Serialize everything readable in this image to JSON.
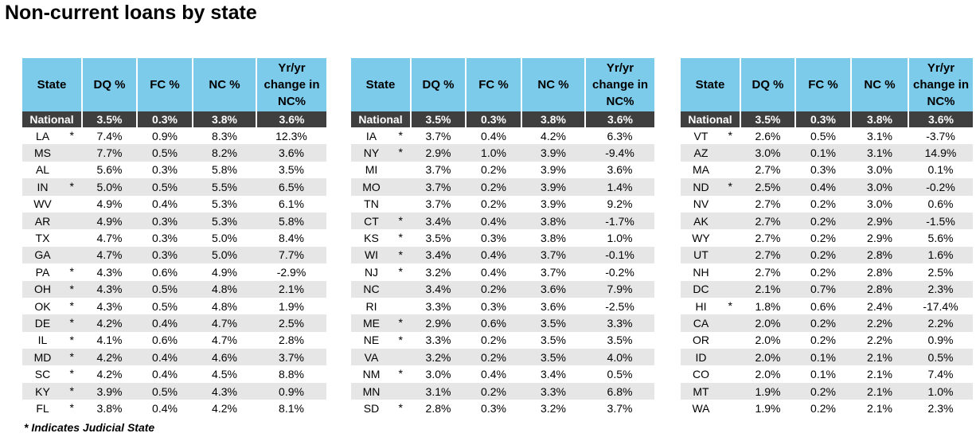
{
  "title": "Non-current loans by state",
  "tables": [
    {
      "headers": [
        "State",
        "DQ %",
        "FC %",
        "NC %",
        "Yr/yr change in NC%"
      ],
      "national": [
        "National",
        "3.5%",
        "0.3%",
        "3.8%",
        "3.6%"
      ],
      "rows": [
        {
          "state": "LA",
          "mark": "*",
          "cells": [
            "7.4%",
            "0.9%",
            "8.3%",
            "12.3%"
          ]
        },
        {
          "state": "MS",
          "cells": [
            "7.7%",
            "0.5%",
            "8.2%",
            "3.6%"
          ]
        },
        {
          "state": "AL",
          "cells": [
            "5.6%",
            "0.3%",
            "5.8%",
            "3.5%"
          ]
        },
        {
          "state": "IN",
          "mark": "*",
          "cells": [
            "5.0%",
            "0.5%",
            "5.5%",
            "6.5%"
          ]
        },
        {
          "state": "WV",
          "cells": [
            "4.9%",
            "0.4%",
            "5.3%",
            "6.1%"
          ]
        },
        {
          "state": "AR",
          "cells": [
            "4.9%",
            "0.3%",
            "5.3%",
            "5.8%"
          ]
        },
        {
          "state": "TX",
          "cells": [
            "4.7%",
            "0.3%",
            "5.0%",
            "8.4%"
          ]
        },
        {
          "state": "GA",
          "cells": [
            "4.7%",
            "0.3%",
            "5.0%",
            "7.7%"
          ]
        },
        {
          "state": "PA",
          "mark": "*",
          "cells": [
            "4.3%",
            "0.6%",
            "4.9%",
            "-2.9%"
          ]
        },
        {
          "state": "OH",
          "mark": "*",
          "cells": [
            "4.3%",
            "0.5%",
            "4.8%",
            "2.1%"
          ]
        },
        {
          "state": "OK",
          "mark": "*",
          "cells": [
            "4.3%",
            "0.5%",
            "4.8%",
            "1.9%"
          ]
        },
        {
          "state": "DE",
          "mark": "*",
          "cells": [
            "4.2%",
            "0.4%",
            "4.7%",
            "2.5%"
          ]
        },
        {
          "state": "IL",
          "mark": "*",
          "cells": [
            "4.1%",
            "0.6%",
            "4.7%",
            "2.8%"
          ]
        },
        {
          "state": "MD",
          "mark": "*",
          "cells": [
            "4.2%",
            "0.4%",
            "4.6%",
            "3.7%"
          ]
        },
        {
          "state": "SC",
          "mark": "*",
          "cells": [
            "4.2%",
            "0.4%",
            "4.5%",
            "8.8%"
          ]
        },
        {
          "state": "KY",
          "mark": "*",
          "cells": [
            "3.9%",
            "0.5%",
            "4.3%",
            "0.9%"
          ]
        },
        {
          "state": "FL",
          "mark": "*",
          "cells": [
            "3.8%",
            "0.4%",
            "4.2%",
            "8.1%"
          ]
        }
      ]
    },
    {
      "headers": [
        "State",
        "DQ %",
        "FC %",
        "NC %",
        "Yr/yr change in NC%"
      ],
      "national": [
        "National",
        "3.5%",
        "0.3%",
        "3.8%",
        "3.6%"
      ],
      "rows": [
        {
          "state": "IA",
          "mark": "*",
          "cells": [
            "3.7%",
            "0.4%",
            "4.2%",
            "6.3%"
          ]
        },
        {
          "state": "NY",
          "mark": "*",
          "cells": [
            "2.9%",
            "1.0%",
            "3.9%",
            "-9.4%"
          ]
        },
        {
          "state": "MI",
          "cells": [
            "3.7%",
            "0.2%",
            "3.9%",
            "3.6%"
          ]
        },
        {
          "state": "MO",
          "cells": [
            "3.7%",
            "0.2%",
            "3.9%",
            "1.4%"
          ]
        },
        {
          "state": "TN",
          "cells": [
            "3.7%",
            "0.2%",
            "3.9%",
            "9.2%"
          ]
        },
        {
          "state": "CT",
          "mark": "*",
          "cells": [
            "3.4%",
            "0.4%",
            "3.8%",
            "-1.7%"
          ]
        },
        {
          "state": "KS",
          "mark": "*",
          "cells": [
            "3.5%",
            "0.3%",
            "3.8%",
            "1.0%"
          ]
        },
        {
          "state": "WI",
          "mark": "*",
          "cells": [
            "3.4%",
            "0.4%",
            "3.7%",
            "-0.1%"
          ]
        },
        {
          "state": "NJ",
          "mark": "*",
          "cells": [
            "3.2%",
            "0.4%",
            "3.7%",
            "-0.2%"
          ]
        },
        {
          "state": "NC",
          "cells": [
            "3.4%",
            "0.2%",
            "3.6%",
            "7.9%"
          ]
        },
        {
          "state": "RI",
          "cells": [
            "3.3%",
            "0.3%",
            "3.6%",
            "-2.5%"
          ]
        },
        {
          "state": "ME",
          "mark": "*",
          "cells": [
            "2.9%",
            "0.6%",
            "3.5%",
            "3.3%"
          ]
        },
        {
          "state": "NE",
          "mark": "*",
          "cells": [
            "3.3%",
            "0.2%",
            "3.5%",
            "3.5%"
          ]
        },
        {
          "state": "VA",
          "cells": [
            "3.2%",
            "0.2%",
            "3.5%",
            "4.0%"
          ]
        },
        {
          "state": "NM",
          "mark": "*",
          "cells": [
            "3.0%",
            "0.4%",
            "3.4%",
            "0.5%"
          ]
        },
        {
          "state": "MN",
          "cells": [
            "3.1%",
            "0.2%",
            "3.3%",
            "6.8%"
          ]
        },
        {
          "state": "SD",
          "mark": "*",
          "cells": [
            "2.8%",
            "0.3%",
            "3.2%",
            "3.7%"
          ]
        }
      ]
    },
    {
      "headers": [
        "State",
        "DQ %",
        "FC %",
        "NC %",
        "Yr/yr change in NC%"
      ],
      "national": [
        "National",
        "3.5%",
        "0.3%",
        "3.8%",
        "3.6%"
      ],
      "rows": [
        {
          "state": "VT",
          "mark": "*",
          "cells": [
            "2.6%",
            "0.5%",
            "3.1%",
            "-3.7%"
          ]
        },
        {
          "state": "AZ",
          "cells": [
            "3.0%",
            "0.1%",
            "3.1%",
            "14.9%"
          ]
        },
        {
          "state": "MA",
          "cells": [
            "2.7%",
            "0.3%",
            "3.0%",
            "0.1%"
          ]
        },
        {
          "state": "ND",
          "mark": "*",
          "cells": [
            "2.5%",
            "0.4%",
            "3.0%",
            "-0.2%"
          ]
        },
        {
          "state": "NV",
          "cells": [
            "2.7%",
            "0.2%",
            "3.0%",
            "0.6%"
          ]
        },
        {
          "state": "AK",
          "cells": [
            "2.7%",
            "0.2%",
            "2.9%",
            "-1.5%"
          ]
        },
        {
          "state": "WY",
          "cells": [
            "2.7%",
            "0.2%",
            "2.9%",
            "5.6%"
          ]
        },
        {
          "state": "UT",
          "cells": [
            "2.7%",
            "0.2%",
            "2.8%",
            "1.6%"
          ]
        },
        {
          "state": "NH",
          "cells": [
            "2.7%",
            "0.2%",
            "2.8%",
            "2.5%"
          ]
        },
        {
          "state": "DC",
          "cells": [
            "2.1%",
            "0.7%",
            "2.8%",
            "2.3%"
          ]
        },
        {
          "state": "HI",
          "mark": "*",
          "cells": [
            "1.8%",
            "0.6%",
            "2.4%",
            "-17.4%"
          ]
        },
        {
          "state": "CA",
          "cells": [
            "2.0%",
            "0.2%",
            "2.2%",
            "2.2%"
          ]
        },
        {
          "state": "OR",
          "cells": [
            "2.0%",
            "0.2%",
            "2.2%",
            "0.9%"
          ]
        },
        {
          "state": "ID",
          "cells": [
            "2.0%",
            "0.1%",
            "2.1%",
            "0.5%"
          ]
        },
        {
          "state": "CO",
          "cells": [
            "2.0%",
            "0.1%",
            "2.1%",
            "7.4%"
          ]
        },
        {
          "state": "MT",
          "cells": [
            "1.9%",
            "0.2%",
            "2.1%",
            "1.0%"
          ]
        },
        {
          "state": "WA",
          "cells": [
            "1.9%",
            "0.2%",
            "2.1%",
            "2.3%"
          ]
        }
      ]
    }
  ],
  "footnote": "* Indicates Judicial State"
}
